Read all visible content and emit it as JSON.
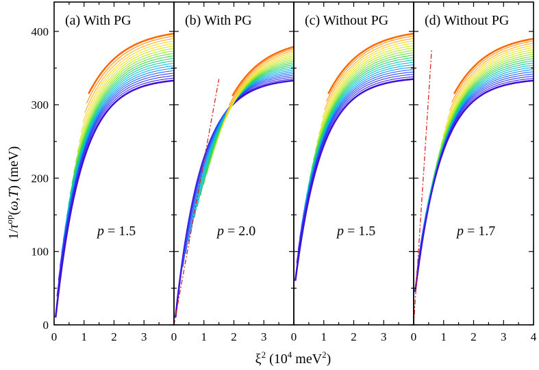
{
  "figure": {
    "ylabel": "1/τ^op(ω,T) (meV)",
    "xlabel": "ξ² (10⁴ meV²)",
    "yticks": [
      "0",
      "100",
      "200",
      "300",
      "400"
    ],
    "xtick_sets": [
      [
        "0",
        "1",
        "2",
        "3"
      ],
      [
        "0",
        "1",
        "2",
        "3"
      ],
      [
        "0",
        "1",
        "2",
        "3"
      ],
      [
        "0",
        "1",
        "2",
        "3",
        "4"
      ]
    ]
  },
  "chart_data": [
    {
      "type": "line",
      "title": "(a) With PG",
      "annotation": "p = 1.5",
      "xlabel": "ξ² (10⁴ meV²)",
      "ylabel": "1/τ^op(ω,T) (meV)",
      "xlim": [
        0,
        4
      ],
      "ylim": [
        0,
        440
      ],
      "series_count": 20,
      "series_colors": [
        "#4010d8",
        "#ff6a00"
      ],
      "curves_start": {
        "x": [
          0.05,
          1.15
        ],
        "y": [
          10,
          315
        ]
      },
      "curves_end": {
        "x": 4.0,
        "y": [
          333,
          397
        ]
      }
    },
    {
      "type": "line",
      "title": "(b) With PG",
      "annotation": "p = 2.0",
      "xlabel": "ξ² (10⁴ meV²)",
      "ylabel": "1/τ^op(ω,T) (meV)",
      "xlim": [
        0,
        4
      ],
      "ylim": [
        0,
        440
      ],
      "series_count": 20,
      "series_colors": [
        "#4010d8",
        "#ff6a00"
      ],
      "curves_start": {
        "x": [
          0.05,
          1.95
        ],
        "y": [
          10,
          312
        ]
      },
      "curves_end": {
        "x": 4.0,
        "y": [
          333,
          379
        ]
      },
      "reference_line": {
        "x": [
          0,
          1.5
        ],
        "y": [
          0,
          335
        ]
      }
    },
    {
      "type": "line",
      "title": "(c) Without PG",
      "annotation": "p = 1.5",
      "xlabel": "ξ² (10⁴ meV²)",
      "ylabel": "1/τ^op(ω,T) (meV)",
      "xlim": [
        0,
        4
      ],
      "ylim": [
        0,
        440
      ],
      "series_count": 20,
      "series_colors": [
        "#4010d8",
        "#ff6a00"
      ],
      "curves_start": {
        "x": [
          0.05,
          1.15
        ],
        "y": [
          60,
          315
        ]
      },
      "curves_end": {
        "x": 4.0,
        "y": [
          335,
          397
        ]
      }
    },
    {
      "type": "line",
      "title": "(d) Without PG",
      "annotation": "p = 1.7",
      "xlabel": "ξ² (10⁴ meV²)",
      "ylabel": "1/τ^op(ω,T) (meV)",
      "xlim": [
        0,
        4
      ],
      "ylim": [
        0,
        440
      ],
      "series_count": 20,
      "series_colors": [
        "#4010d8",
        "#ff6a00"
      ],
      "curves_start": {
        "x": [
          0.05,
          1.35
        ],
        "y": [
          45,
          315
        ]
      },
      "curves_end": {
        "x": 4.0,
        "y": [
          333,
          390
        ]
      },
      "reference_line": {
        "x": [
          0,
          0.6
        ],
        "y": [
          0,
          375
        ]
      }
    }
  ]
}
